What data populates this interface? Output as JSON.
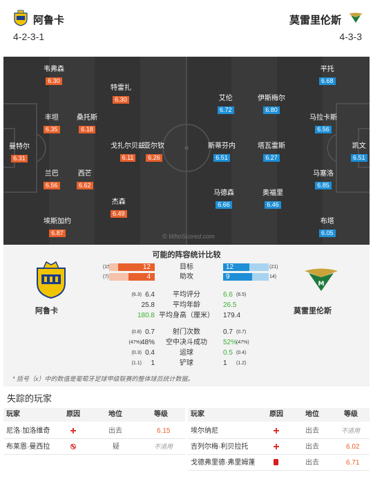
{
  "header": {
    "home": {
      "name": "阿鲁卡",
      "formation": "4-2-3-1",
      "logo_icon": "arouca-crest-icon"
    },
    "away": {
      "name": "莫雷里伦斯",
      "formation": "4-3-3",
      "logo_icon": "moreirense-crest-icon"
    }
  },
  "colors": {
    "home": "#e8612c",
    "away": "#1e8fd6",
    "pitch": "#3a3a3a",
    "green": "#3cb032"
  },
  "pitch": {
    "watermark": "© WhoScored.com",
    "home_players": [
      {
        "name": "韦弗森",
        "rating": "6.30"
      },
      {
        "name": "特雷扎",
        "rating": "6.30"
      },
      {
        "name": "丰坦",
        "rating": "6.35"
      },
      {
        "name": "桑托斯",
        "rating": "6.18"
      },
      {
        "name": "曼特尔",
        "rating": "6.31"
      },
      {
        "name": "戈扎尔贝兹",
        "rating": "6.11"
      },
      {
        "name": "亚尔钦",
        "rating": "6.26"
      },
      {
        "name": "兰巴",
        "rating": "6.56"
      },
      {
        "name": "西芒",
        "rating": "6.62"
      },
      {
        "name": "杰森",
        "rating": "6.49"
      },
      {
        "name": "埃斯加约",
        "rating": "6.87"
      }
    ],
    "away_players": [
      {
        "name": "平托",
        "rating": "6.68"
      },
      {
        "name": "艾伦",
        "rating": "6.72"
      },
      {
        "name": "伊斯梅尔",
        "rating": "6.80"
      },
      {
        "name": "马拉卡斯",
        "rating": "6.56"
      },
      {
        "name": "斯蒂芬内",
        "rating": "6.51"
      },
      {
        "name": "塔瓦雷斯",
        "rating": "6.27"
      },
      {
        "name": "凯文",
        "rating": "6.51"
      },
      {
        "name": "马塞洛",
        "rating": "6.85"
      },
      {
        "name": "马德森",
        "rating": "6.66"
      },
      {
        "name": "奥福里",
        "rating": "6.46"
      },
      {
        "name": "布塔",
        "rating": "6.05"
      }
    ]
  },
  "stats": {
    "title": "可能的阵容统计比较",
    "bars": [
      {
        "label": "目标",
        "home": "12",
        "home_par": "(15)",
        "away": "12",
        "away_par": "(21)",
        "home_frac": 0.8,
        "away_frac": 0.57
      },
      {
        "label": "助攻",
        "home": "4",
        "home_par": "(7)",
        "away": "9",
        "away_par": "14)",
        "home_frac": 0.57,
        "away_frac": 0.64
      }
    ],
    "rows": [
      {
        "label": "平均评分",
        "home": "6.4",
        "home_par": "(6.3)",
        "away": "6.6",
        "away_par": "(6.5)",
        "home_green": false,
        "away_green": true
      },
      {
        "label": "平均年龄",
        "home": "25.8",
        "home_par": "",
        "away": "26.5",
        "away_par": "",
        "home_green": false,
        "away_green": true
      },
      {
        "label": "平均身高（厘米）",
        "home": "180.8",
        "home_par": "",
        "away": "179.4",
        "away_par": "",
        "home_green": true,
        "away_green": false
      },
      {
        "label": "射门次数",
        "home": "0.7",
        "home_par": "(0.8)",
        "away": "0.7",
        "away_par": "(0.7)",
        "home_green": false,
        "away_green": false
      },
      {
        "label": "空中决斗成功",
        "home": "48%",
        "home_par": "(47%)",
        "away": "52%",
        "away_par": "(47%)",
        "home_green": false,
        "away_green": true
      },
      {
        "label": "运球",
        "home": "0.4",
        "home_par": "(0.3)",
        "away": "0.5",
        "away_par": "(0.4)",
        "home_green": false,
        "away_green": true
      },
      {
        "label": "铲球",
        "home": "1",
        "home_par": "(1.1)",
        "away": "1",
        "away_par": "(1.2)",
        "home_green": false,
        "away_green": false
      }
    ],
    "footnote": "* 括号（x）中的数值是葡萄牙足球甲级联赛的整体球员统计数据。"
  },
  "missing": {
    "title": "失踪的玩家",
    "headers": {
      "player": "玩家",
      "reason": "原因",
      "position": "地位",
      "rating": "等级"
    },
    "home": [
      {
        "player": "尼洛·加洛维奇",
        "reason_icon": "injury-cross-icon",
        "position": "出去",
        "rating": "6.15",
        "rating_style": "orange"
      },
      {
        "player": "布莱恩·曼西拉",
        "reason_icon": "doubtful-ban-icon",
        "position": "疑",
        "rating": "不适用",
        "rating_style": "na"
      }
    ],
    "away": [
      {
        "player": "埃尔纳尼",
        "reason_icon": "injury-cross-icon",
        "position": "出去",
        "rating": "不适用",
        "rating_style": "na"
      },
      {
        "player": "吉列尔梅·利贝拉托",
        "reason_icon": "injury-cross-icon",
        "position": "出去",
        "rating": "6.02",
        "rating_style": "orange"
      },
      {
        "player": "戈德弗里德·弗里姆蓬",
        "reason_icon": "red-card-icon",
        "position": "出去",
        "rating": "6.71",
        "rating_style": "orange"
      }
    ]
  }
}
